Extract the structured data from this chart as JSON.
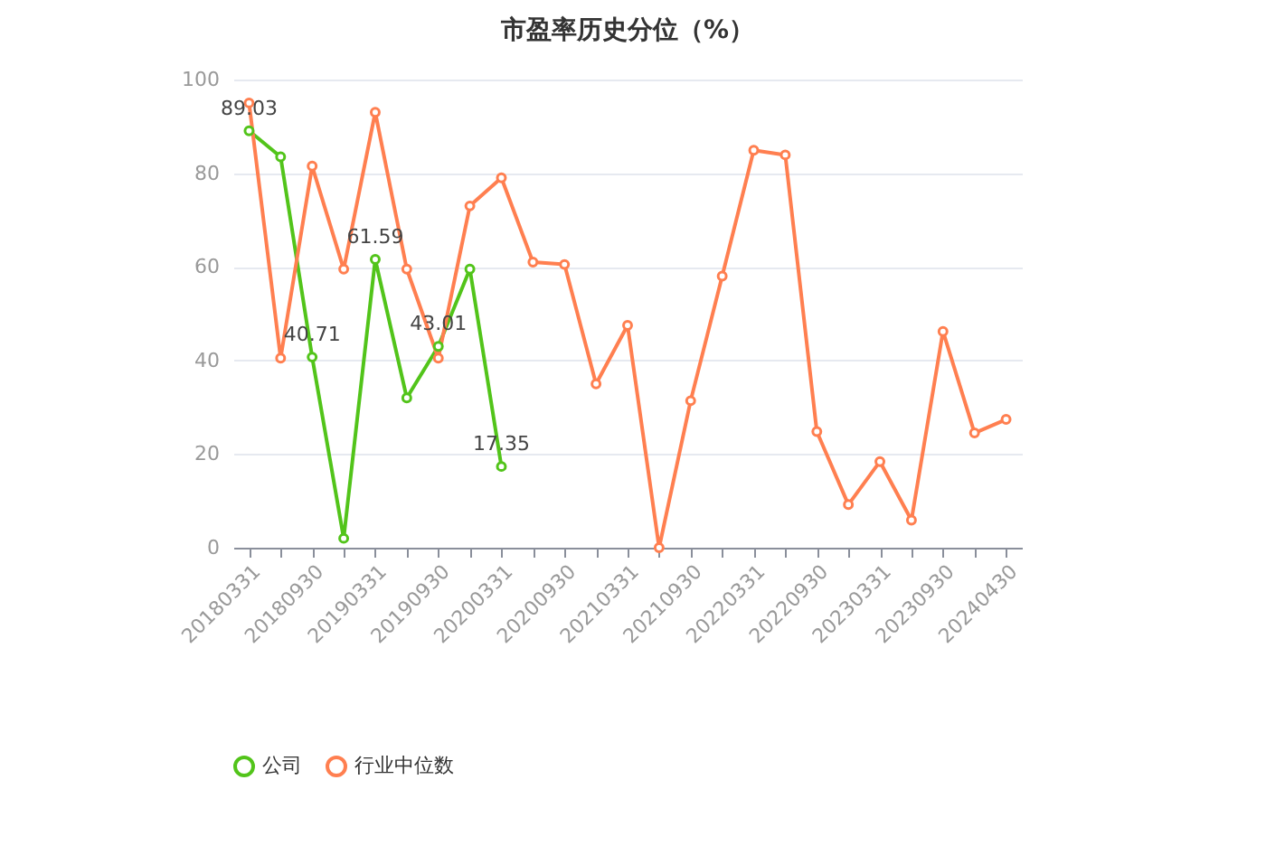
{
  "chart_data": {
    "type": "line",
    "title": "市盈率历史分位（%）",
    "categories": [
      "20180331",
      null,
      "20180930",
      null,
      "20190331",
      null,
      "20190930",
      null,
      "20200331",
      null,
      "20200930",
      null,
      "20210331",
      null,
      "20210930",
      null,
      "20220331",
      null,
      "20220930",
      null,
      "20230331",
      null,
      "20230930",
      null,
      "20240430"
    ],
    "series": [
      {
        "name": "公司",
        "color": "#52c41a",
        "values": [
          89.03,
          83.5,
          40.71,
          2,
          61.59,
          32,
          43.01,
          59.5,
          17.35,
          null,
          null,
          null,
          null,
          null,
          null,
          null,
          null,
          null,
          null,
          null,
          null,
          null,
          null,
          null,
          null
        ],
        "value_labels": [
          "89.03",
          null,
          "40.71",
          null,
          "61.59",
          null,
          "43.01",
          null,
          "17.35",
          null,
          null,
          null,
          null,
          null,
          null,
          null,
          null,
          null,
          null,
          null,
          null,
          null,
          null,
          null,
          null
        ]
      },
      {
        "name": "行业中位数",
        "color": "#ff7f50",
        "values": [
          95,
          40.5,
          81.5,
          59.5,
          93,
          59.5,
          40.5,
          73,
          79,
          61,
          60.5,
          35,
          47.5,
          0,
          31.4,
          58,
          84.9,
          83.9,
          24.8,
          9.2,
          18.4,
          5.9,
          46.2,
          24.5,
          27.4
        ]
      }
    ],
    "ylim": [
      0,
      100
    ],
    "yticks": [
      0,
      20,
      40,
      60,
      80,
      100
    ],
    "grid": "y",
    "legend": "bottom",
    "marker": "circle",
    "line_style": "solid"
  }
}
